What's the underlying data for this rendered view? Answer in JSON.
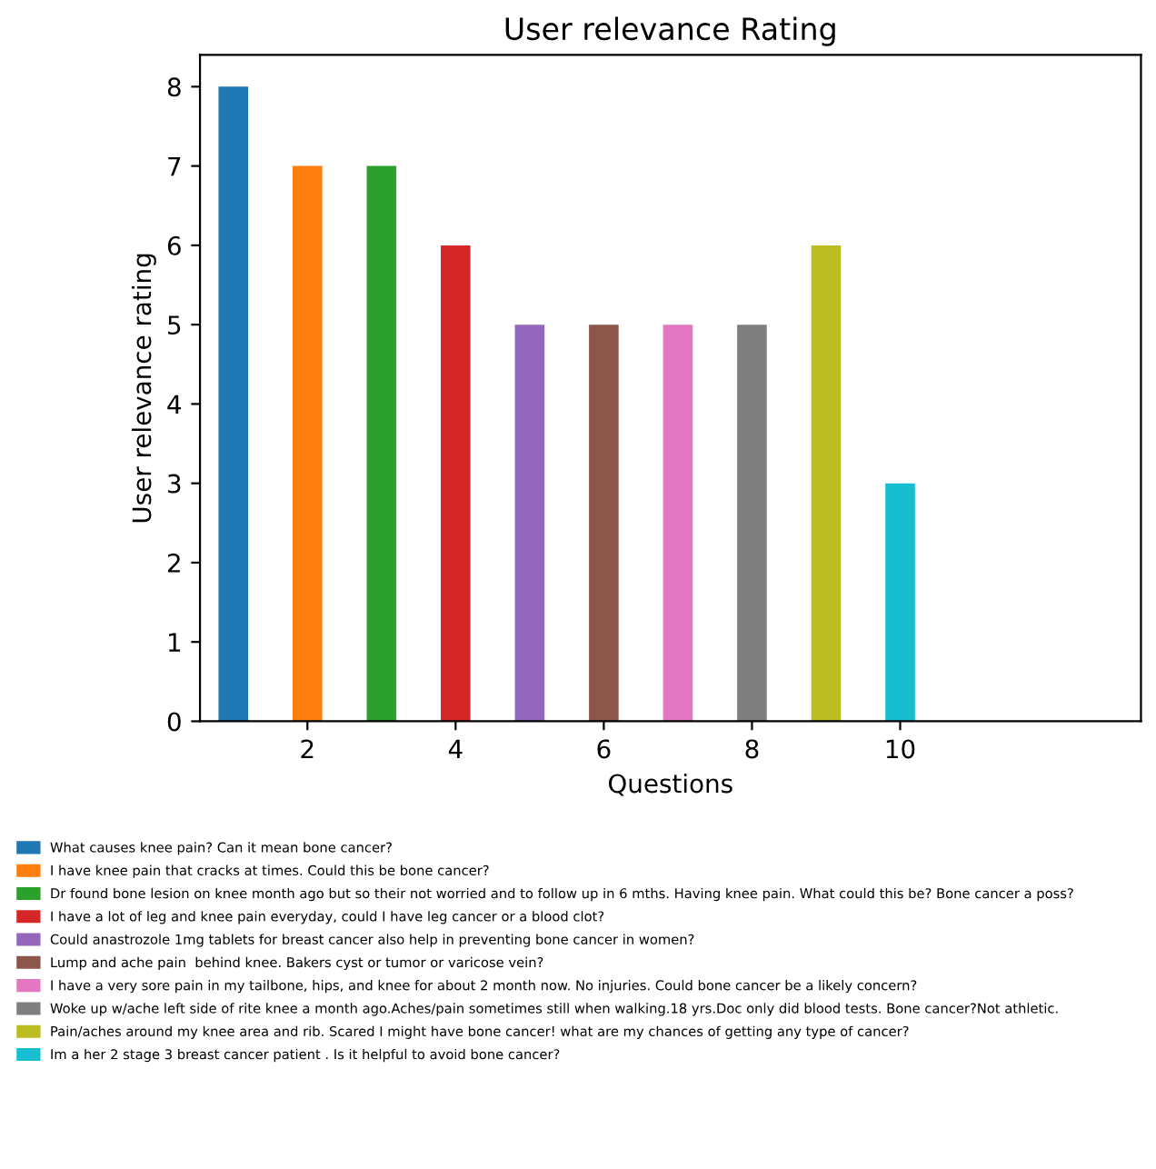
{
  "chart_data": {
    "type": "bar",
    "title": "User relevance Rating",
    "xlabel": "Questions",
    "ylabel": "User relevance rating",
    "xlim": [
      0.55,
      13.25
    ],
    "xticks": [
      2,
      4,
      6,
      8,
      10
    ],
    "ylim": [
      0,
      8.4
    ],
    "yticks": [
      0,
      1,
      2,
      3,
      4,
      5,
      6,
      7,
      8
    ],
    "grid": false,
    "legend": "bottom",
    "series": [
      {
        "name": "What causes knee pain? Can it mean bone cancer?",
        "color": "#1f77b4",
        "x": [
          1
        ],
        "values": [
          8
        ]
      },
      {
        "name": "I have knee pain that cracks at times. Could this be bone cancer?",
        "color": "#ff7f0e",
        "x": [
          2
        ],
        "values": [
          7
        ]
      },
      {
        "name": "Dr found bone lesion on knee month ago but so their not worried and to follow up in 6 mths. Having knee pain. What could this be? Bone cancer a poss?",
        "color": "#2ca02c",
        "x": [
          3
        ],
        "values": [
          7
        ]
      },
      {
        "name": "I have a lot of leg and knee pain everyday, could I have leg cancer or a blood clot?",
        "color": "#d62728",
        "x": [
          4
        ],
        "values": [
          6
        ]
      },
      {
        "name": "Could anastrozole 1mg tablets for breast cancer also help in preventing bone cancer in women?",
        "color": "#9467bd",
        "x": [
          5
        ],
        "values": [
          5
        ]
      },
      {
        "name": "Lump and ache pain  behind knee. Bakers cyst or tumor or varicose vein?",
        "color": "#8c564b",
        "x": [
          6
        ],
        "values": [
          5
        ]
      },
      {
        "name": "I have a very sore pain in my tailbone, hips, and knee for about 2 month now. No injuries. Could bone cancer be a likely concern?",
        "color": "#e377c2",
        "x": [
          7
        ],
        "values": [
          5
        ]
      },
      {
        "name": "Woke up w/ache left side of rite knee a month ago.Aches/pain sometimes still when walking.18 yrs.Doc only did blood tests. Bone cancer?Not athletic.",
        "color": "#7f7f7f",
        "x": [
          8
        ],
        "values": [
          5
        ]
      },
      {
        "name": "Pain/aches around my knee area and rib. Scared I might have bone cancer! what are my chances of getting any type of cancer?",
        "color": "#bcbd22",
        "x": [
          9
        ],
        "values": [
          6
        ]
      },
      {
        "name": "Im a her 2 stage 3 breast cancer patient . Is it helpful to avoid bone cancer?",
        "color": "#17becf",
        "x": [
          10
        ],
        "values": [
          3
        ]
      }
    ]
  }
}
